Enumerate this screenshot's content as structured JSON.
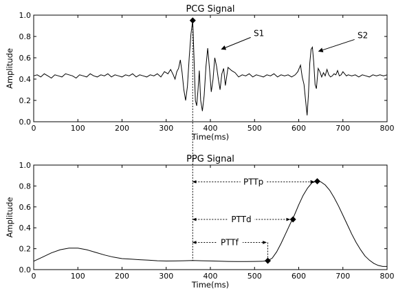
{
  "chart_data": [
    {
      "type": "line",
      "title": "PCG Signal",
      "xlabel": "Time(ms)",
      "ylabel": "Amplitude",
      "xlim": [
        0,
        800
      ],
      "ylim": [
        0.0,
        1.0
      ],
      "xticks": [
        "0",
        "100",
        "200",
        "300",
        "400",
        "500",
        "600",
        "700",
        "800"
      ],
      "yticks": [
        "0.0",
        "0.2",
        "0.4",
        "0.6",
        "0.8",
        "1.0"
      ],
      "grid": false,
      "series": [
        {
          "x": [
            0,
            8,
            16,
            24,
            32,
            40,
            48,
            56,
            64,
            72,
            80,
            88,
            96,
            104,
            112,
            120,
            128,
            136,
            144,
            152,
            160,
            168,
            176,
            184,
            192,
            200,
            208,
            216,
            224,
            232,
            240,
            248,
            256,
            264,
            272,
            280,
            288,
            296,
            304,
            310,
            316,
            320,
            324,
            328,
            332,
            336,
            340,
            344,
            348,
            352,
            356,
            360,
            363,
            366,
            369,
            372,
            375,
            378,
            382,
            386,
            390,
            394,
            398,
            402,
            406,
            410,
            414,
            418,
            422,
            426,
            430,
            434,
            440,
            448,
            456,
            464,
            472,
            480,
            488,
            496,
            504,
            512,
            520,
            528,
            536,
            544,
            552,
            560,
            568,
            576,
            584,
            592,
            598,
            604,
            608,
            612,
            616,
            619,
            622,
            625,
            628,
            631,
            634,
            637,
            640,
            644,
            648,
            652,
            656,
            660,
            664,
            668,
            672,
            676,
            680,
            684,
            688,
            692,
            696,
            700,
            704,
            708,
            712,
            720,
            728,
            736,
            744,
            752,
            760,
            768,
            776,
            784,
            792,
            800
          ],
          "y": [
            0.43,
            0.44,
            0.42,
            0.45,
            0.43,
            0.41,
            0.44,
            0.43,
            0.42,
            0.45,
            0.44,
            0.43,
            0.41,
            0.44,
            0.43,
            0.42,
            0.45,
            0.43,
            0.42,
            0.44,
            0.43,
            0.45,
            0.42,
            0.44,
            0.43,
            0.42,
            0.44,
            0.43,
            0.45,
            0.42,
            0.44,
            0.43,
            0.42,
            0.44,
            0.43,
            0.45,
            0.42,
            0.47,
            0.45,
            0.49,
            0.44,
            0.4,
            0.47,
            0.5,
            0.58,
            0.46,
            0.3,
            0.2,
            0.33,
            0.6,
            0.82,
            0.95,
            0.6,
            0.2,
            0.15,
            0.3,
            0.48,
            0.2,
            0.1,
            0.25,
            0.52,
            0.69,
            0.5,
            0.28,
            0.4,
            0.6,
            0.52,
            0.4,
            0.3,
            0.45,
            0.5,
            0.34,
            0.51,
            0.48,
            0.46,
            0.42,
            0.44,
            0.43,
            0.45,
            0.42,
            0.44,
            0.43,
            0.42,
            0.44,
            0.43,
            0.45,
            0.42,
            0.44,
            0.43,
            0.44,
            0.42,
            0.44,
            0.47,
            0.53,
            0.42,
            0.35,
            0.18,
            0.06,
            0.25,
            0.55,
            0.68,
            0.7,
            0.56,
            0.35,
            0.31,
            0.5,
            0.47,
            0.42,
            0.46,
            0.43,
            0.49,
            0.44,
            0.42,
            0.43,
            0.45,
            0.44,
            0.48,
            0.43,
            0.44,
            0.47,
            0.45,
            0.43,
            0.44,
            0.43,
            0.44,
            0.42,
            0.44,
            0.43,
            0.42,
            0.44,
            0.43,
            0.44,
            0.43,
            0.44
          ]
        }
      ],
      "markers": [
        {
          "x": 360,
          "y": 0.95
        }
      ],
      "annotations": [
        {
          "text": "S1",
          "text_x": 510,
          "text_y": 0.83,
          "arrow_to_x": 425,
          "arrow_to_y": 0.68
        },
        {
          "text": "S2",
          "text_x": 745,
          "text_y": 0.81,
          "arrow_to_x": 645,
          "arrow_to_y": 0.66
        }
      ]
    },
    {
      "type": "line",
      "title": "PPG Signal",
      "xlabel": "Time(ms)",
      "ylabel": "Amplitude",
      "xlim": [
        0,
        800
      ],
      "ylim": [
        0.0,
        1.0
      ],
      "xticks": [
        "0",
        "100",
        "200",
        "300",
        "400",
        "500",
        "600",
        "700",
        "800"
      ],
      "yticks": [
        "0.0",
        "0.2",
        "0.4",
        "0.6",
        "0.8",
        "1.0"
      ],
      "grid": false,
      "series": [
        {
          "x": [
            0,
            20,
            40,
            60,
            80,
            100,
            120,
            140,
            160,
            180,
            200,
            220,
            240,
            260,
            280,
            300,
            320,
            340,
            360,
            380,
            400,
            420,
            440,
            460,
            480,
            500,
            520,
            530,
            540,
            550,
            560,
            570,
            580,
            590,
            600,
            610,
            620,
            630,
            640,
            650,
            660,
            670,
            680,
            690,
            700,
            710,
            720,
            730,
            740,
            750,
            760,
            770,
            780,
            790,
            800
          ],
          "y": [
            0.08,
            0.12,
            0.16,
            0.19,
            0.205,
            0.205,
            0.19,
            0.165,
            0.14,
            0.12,
            0.105,
            0.1,
            0.095,
            0.09,
            0.085,
            0.082,
            0.083,
            0.085,
            0.087,
            0.085,
            0.083,
            0.08,
            0.078,
            0.077,
            0.077,
            0.078,
            0.08,
            0.085,
            0.11,
            0.17,
            0.25,
            0.34,
            0.43,
            0.52,
            0.62,
            0.71,
            0.78,
            0.83,
            0.845,
            0.84,
            0.81,
            0.76,
            0.69,
            0.61,
            0.52,
            0.43,
            0.34,
            0.26,
            0.19,
            0.13,
            0.09,
            0.06,
            0.04,
            0.03,
            0.03
          ]
        }
      ],
      "markers": [
        {
          "x": 530,
          "y": 0.085
        },
        {
          "x": 587,
          "y": 0.48
        },
        {
          "x": 642,
          "y": 0.845
        }
      ],
      "intervals": [
        {
          "label": "PTTp",
          "x_start": 360,
          "x_end": 635,
          "y": 0.84
        },
        {
          "label": "PTTd",
          "x_start": 360,
          "x_end": 580,
          "y": 0.48
        },
        {
          "label": "PTTf",
          "x_start": 360,
          "x_end": 527,
          "y": 0.26
        }
      ],
      "drop_lines": [
        {
          "x": 530,
          "y_from": 0.26,
          "y_to": 0.085
        }
      ]
    }
  ],
  "sync_line_x": 360
}
